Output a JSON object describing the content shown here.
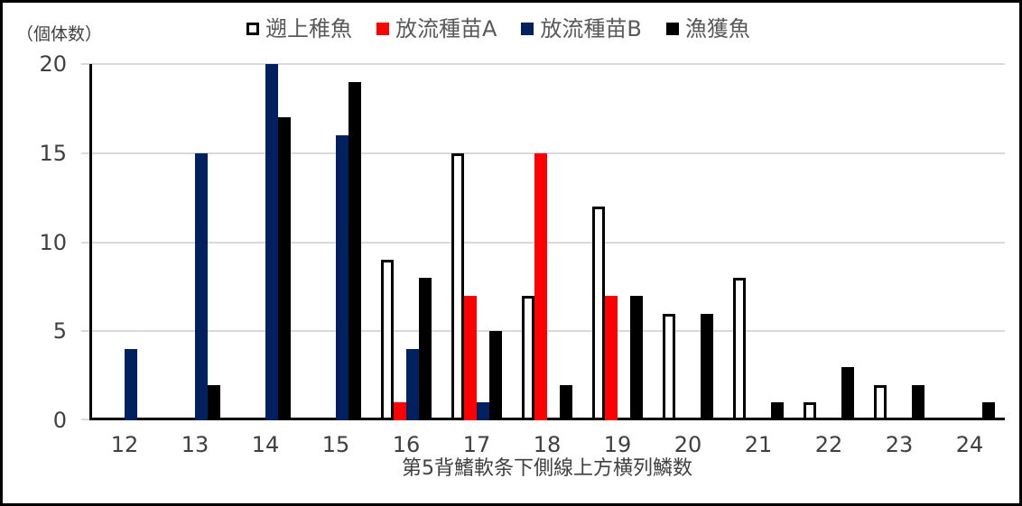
{
  "chart_data": {
    "type": "bar",
    "title": "",
    "ylabel": "（個体数）",
    "xlabel": "第5背鰭軟条下側線上方横列鱗数",
    "ylim": [
      0,
      20
    ],
    "yticks": [
      0,
      5,
      10,
      15,
      20
    ],
    "grid": "horizontal",
    "legend_position": "top-center",
    "categories": [
      12,
      13,
      14,
      15,
      16,
      17,
      18,
      19,
      20,
      21,
      22,
      23,
      24
    ],
    "series": [
      {
        "name": "遡上稚魚",
        "fill": "#FFFFFF",
        "border": "#000000",
        "values": [
          0,
          0,
          0,
          0,
          9,
          15,
          7,
          12,
          6,
          8,
          1,
          2,
          0
        ]
      },
      {
        "name": "放流種苗A",
        "fill": "#FF0000",
        "border": null,
        "values": [
          0,
          0,
          0,
          0,
          1,
          7,
          15,
          7,
          0,
          0,
          0,
          0,
          0
        ]
      },
      {
        "name": "放流種苗B",
        "fill": "#002060",
        "border": null,
        "values": [
          4,
          15,
          20,
          16,
          4,
          1,
          0,
          0,
          0,
          0,
          0,
          0,
          0
        ]
      },
      {
        "name": "漁獲魚",
        "fill": "#000000",
        "border": null,
        "values": [
          0,
          2,
          17,
          19,
          8,
          5,
          2,
          7,
          6,
          1,
          3,
          2,
          1
        ]
      }
    ],
    "colors": {
      "gridline": "#D9D9D9",
      "axis_line": "#000000",
      "tick_text": "#404040",
      "legend_text": "#595959",
      "chart_border": "#000000",
      "background": "#FFFFFF"
    }
  }
}
